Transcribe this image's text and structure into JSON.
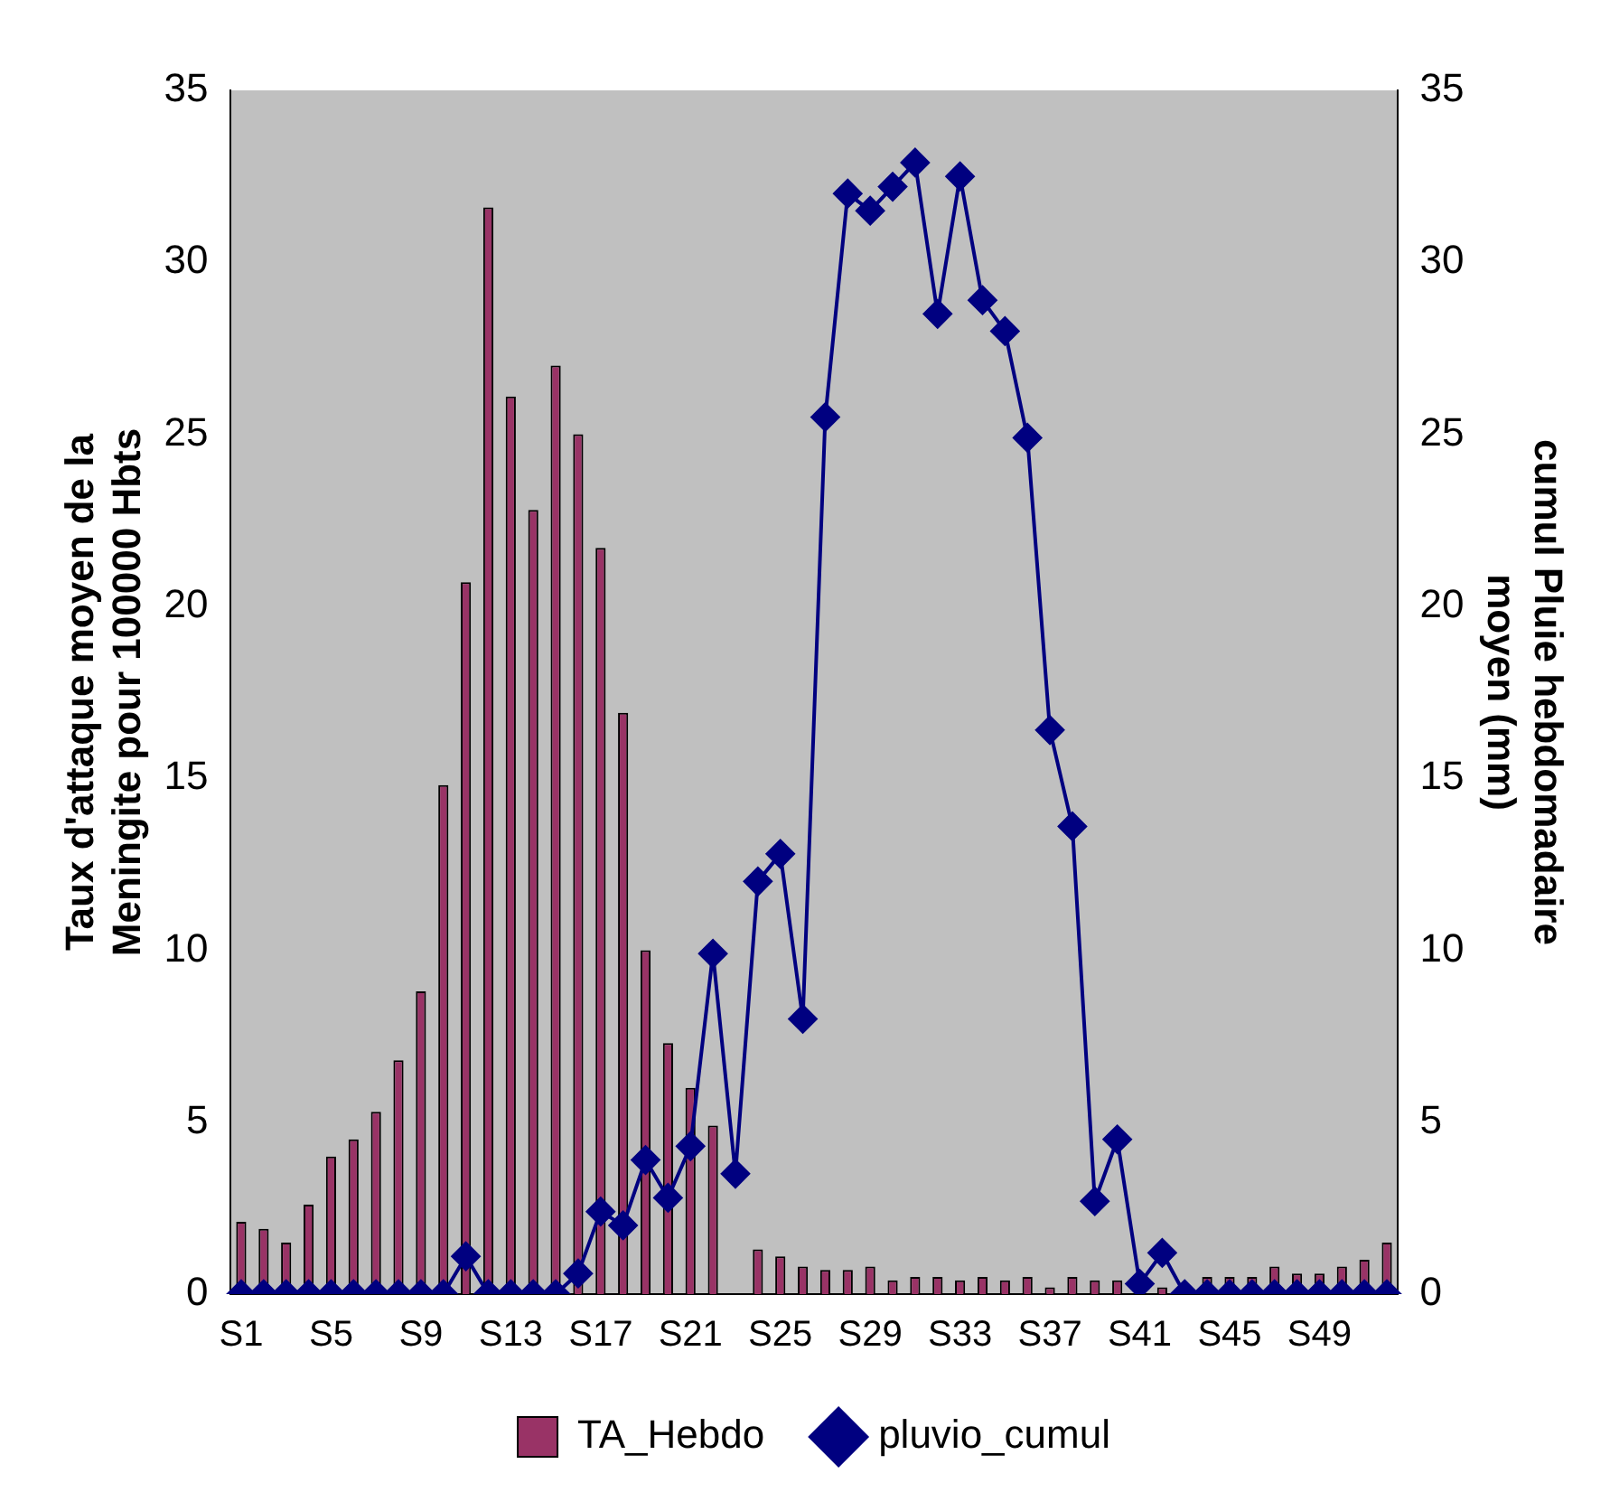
{
  "chart_data": {
    "type": "bar",
    "categories": [
      "S1",
      null,
      null,
      null,
      "S5",
      null,
      null,
      null,
      "S9",
      null,
      null,
      null,
      "S13",
      null,
      null,
      null,
      "S17",
      null,
      null,
      null,
      "S21",
      null,
      null,
      null,
      "S25",
      null,
      null,
      null,
      "S29",
      null,
      null,
      null,
      "S33",
      null,
      null,
      null,
      "S37",
      null,
      null,
      null,
      "S41",
      null,
      null,
      null,
      "S45",
      null,
      null,
      null,
      "S49",
      null,
      null,
      null
    ],
    "ylabel": "Taux d'attaque moyen de la\nMeningite pour 100000 Hbts",
    "y2label": "cumul Pluie hebdomadaire\nmoyen (mm)",
    "series": [
      {
        "name": "TA_Hebdo",
        "color": "#993366",
        "values": [
          2.1,
          1.9,
          1.5,
          2.6,
          4.0,
          4.5,
          5.3,
          6.8,
          8.8,
          14.8,
          20.7,
          31.6,
          26.1,
          22.8,
          27.0,
          25.0,
          21.7,
          16.9,
          10.0,
          7.3,
          6.0,
          4.9,
          null,
          1.3,
          1.1,
          0.8,
          0.7,
          0.7,
          0.8,
          0.4,
          0.5,
          0.5,
          0.4,
          0.5,
          0.4,
          0.5,
          0.2,
          0.5,
          0.4,
          0.4,
          null,
          0.2,
          null,
          0.5,
          0.5,
          0.5,
          0.8,
          0.6,
          0.6,
          0.8,
          1.0,
          1.5
        ]
      },
      {
        "name": "pluvio_cumul",
        "type": "line",
        "axis": "y2",
        "color": "#000080",
        "marker": "diamond",
        "values": [
          0,
          0,
          0,
          0,
          0,
          0,
          0,
          0,
          0,
          0,
          1.1,
          0,
          0,
          0,
          0,
          0.6,
          2.4,
          2.0,
          3.9,
          2.8,
          4.3,
          9.9,
          3.5,
          12.0,
          12.8,
          8.0,
          25.5,
          32.0,
          31.5,
          32.2,
          32.9,
          28.5,
          32.5,
          28.9,
          28.0,
          24.9,
          16.4,
          13.6,
          2.7,
          4.5,
          0.3,
          1.2,
          0,
          0,
          0,
          0,
          0,
          0,
          0,
          0,
          0,
          0
        ]
      }
    ],
    "ylim": [
      0,
      35
    ],
    "yticks": [
      0,
      5,
      10,
      15,
      20,
      25,
      30,
      35
    ],
    "y2lim": [
      0,
      35
    ],
    "y2ticks": [
      0,
      5,
      10,
      15,
      20,
      25,
      30,
      35
    ],
    "grid": false,
    "legend": "bottom"
  }
}
